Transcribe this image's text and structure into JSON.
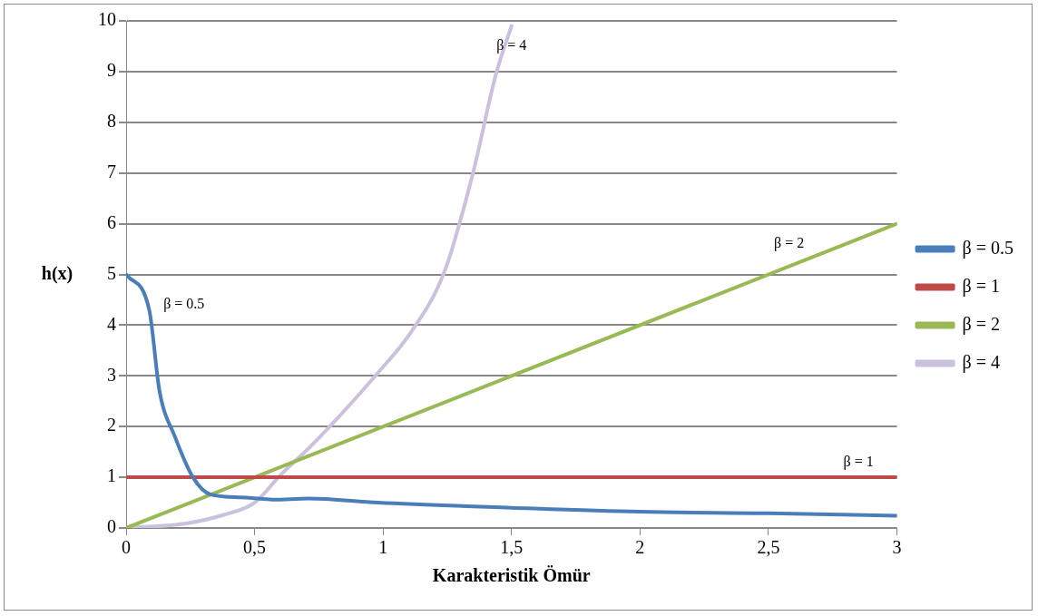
{
  "chart_data": {
    "type": "line",
    "xlabel": "Karakteristik Ömür",
    "ylabel": "h(x)",
    "xlim": [
      0,
      3
    ],
    "ylim": [
      0,
      10
    ],
    "xticks": [
      0,
      {
        "value": 0.5,
        "label": "0,5"
      },
      1,
      {
        "value": 1.5,
        "label": "1,5"
      },
      2,
      {
        "value": 2.5,
        "label": "2,5"
      },
      3
    ],
    "yticks": [
      0,
      1,
      2,
      3,
      4,
      5,
      6,
      7,
      8,
      9,
      10
    ],
    "grid": "y",
    "legend": "right",
    "marker": "none",
    "line_style": "solid",
    "series": [
      {
        "name": "β = 0.5",
        "color": "#4a7ebb",
        "x": [
          0,
          0.09,
          0.13,
          0.19,
          0.26,
          0.33,
          0.47,
          0.57,
          0.71,
          0.98,
          1.5,
          2,
          2.5,
          3
        ],
        "values": [
          5,
          4.3,
          2.7,
          1.8,
          1.0,
          0.66,
          0.6,
          0.56,
          0.58,
          0.5,
          0.4,
          0.32,
          0.29,
          0.24
        ]
      },
      {
        "name": "β = 1",
        "color": "#be4b48",
        "x": [
          0,
          3
        ],
        "values": [
          1,
          1
        ]
      },
      {
        "name": "β = 2",
        "color": "#98b954",
        "x": [
          0,
          3
        ],
        "values": [
          0,
          6
        ]
      },
      {
        "name": "β = 4",
        "color": "#cbc0dd",
        "x": [
          0,
          0.22,
          0.38,
          0.5,
          0.6,
          0.73,
          0.98,
          1.11,
          1.24,
          1.35,
          1.44,
          1.5
        ],
        "values": [
          0,
          0.08,
          0.26,
          0.5,
          1.04,
          1.67,
          3.06,
          3.87,
          5.07,
          7.0,
          8.96,
          9.9
        ]
      }
    ],
    "annotations": [
      "β = 0.5",
      "β = 4",
      "β = 2",
      "β = 1"
    ]
  }
}
